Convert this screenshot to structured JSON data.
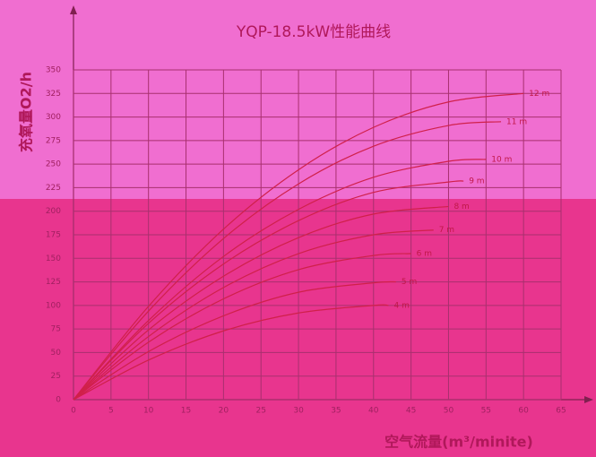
{
  "chart_data": {
    "type": "line",
    "title": "YQP-18.5kW性能曲线",
    "ylabel": "充氧量O2/h",
    "xlabel": "空气流量(m³/minite)",
    "xlim": [
      0,
      65
    ],
    "xticks": [
      0,
      5,
      10,
      15,
      20,
      25,
      30,
      35,
      40,
      45,
      50,
      55,
      60,
      65
    ],
    "ylim": [
      0,
      350
    ],
    "yticks": [
      0,
      25,
      50,
      75,
      100,
      125,
      150,
      175,
      200,
      225,
      250,
      275,
      300,
      325,
      350
    ],
    "grid": true,
    "series": [
      {
        "name": "12 m",
        "color": "#d0204a",
        "x": [
          0,
          10,
          20,
          30,
          40,
          50,
          60
        ],
        "values": [
          0,
          99,
          181,
          244,
          289,
          316,
          325
        ]
      },
      {
        "name": "11 m",
        "color": "#d0204a",
        "x": [
          0,
          10,
          20,
          30,
          40,
          50,
          57
        ],
        "values": [
          0,
          94,
          171,
          229,
          269,
          291,
          295
        ]
      },
      {
        "name": "10 m",
        "color": "#d0204a",
        "x": [
          0,
          10,
          20,
          30,
          40,
          50,
          55
        ],
        "values": [
          0,
          84,
          152,
          202,
          236,
          253,
          255
        ]
      },
      {
        "name": "9 m",
        "color": "#d0204a",
        "x": [
          0,
          10,
          20,
          30,
          40,
          50,
          52
        ],
        "values": [
          0,
          81,
          144,
          190,
          220,
          231,
          232
        ]
      },
      {
        "name": "8 m",
        "color": "#d0204a",
        "x": [
          0,
          10,
          20,
          30,
          40,
          50
        ],
        "values": [
          0,
          74,
          131,
          172,
          197,
          205
        ]
      },
      {
        "name": "7 m",
        "color": "#d0204a",
        "x": [
          0,
          10,
          20,
          30,
          40,
          48
        ],
        "values": [
          0,
          67,
          119,
          155,
          175,
          180
        ]
      },
      {
        "name": "6 m",
        "color": "#d0204a",
        "x": [
          0,
          10,
          20,
          30,
          40,
          45
        ],
        "values": [
          0,
          61,
          107,
          138,
          153,
          155
        ]
      },
      {
        "name": "5 m",
        "color": "#d0204a",
        "x": [
          0,
          10,
          20,
          30,
          40,
          43
        ],
        "values": [
          0,
          51,
          89,
          114,
          124,
          125
        ]
      },
      {
        "name": "4 m",
        "color": "#d0204a",
        "x": [
          0,
          10,
          20,
          30,
          40,
          42
        ],
        "values": [
          0,
          42,
          73,
          92,
          100,
          100
        ]
      }
    ]
  }
}
